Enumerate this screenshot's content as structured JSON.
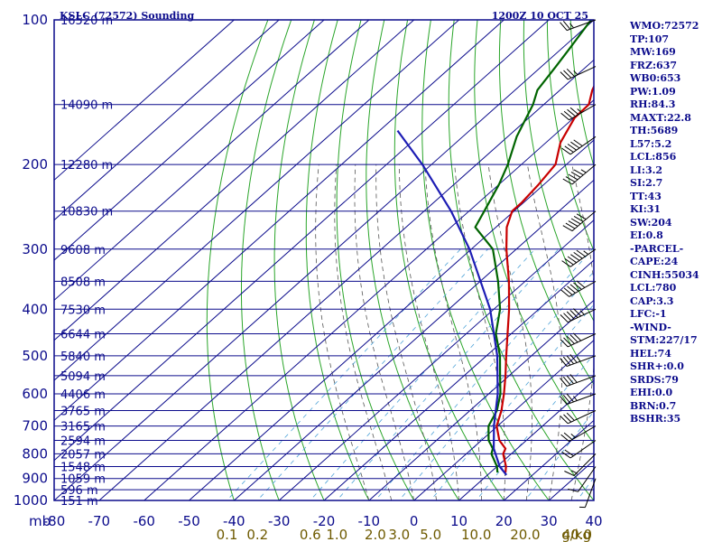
{
  "header": {
    "station": "KSLC (72572) Sounding",
    "time": "1200Z 10 OCT 25"
  },
  "colors": {
    "axis": "#0c0c8c",
    "dry_adiabat": "#2aa52a",
    "moist_adiabat": "#555555",
    "mixing_ratio": "#4fa3d8",
    "temperature": "#c80000",
    "dewpoint": "#006400",
    "parcel": "#1c1cb4",
    "wind": "#000000",
    "mixing_label": "#6e5a00"
  },
  "chart_data": {
    "type": "line",
    "title": "KSLC (72572) Sounding",
    "subtitle": "1200Z 10 OCT 25",
    "xlabel": "",
    "ylabel": "mb",
    "x_units": "degrees C (skewed)",
    "y_units": "hPa (log scale)",
    "xlim": [
      -80,
      40
    ],
    "ylim": [
      1000,
      100
    ],
    "pressure_ticks": [
      100,
      200,
      300,
      400,
      500,
      600,
      700,
      800,
      900,
      1000
    ],
    "temperature_ticks": [
      -80,
      -70,
      -60,
      -50,
      -40,
      -30,
      -20,
      -10,
      0,
      10,
      20,
      30,
      40
    ],
    "temperature_tick_labels": [
      "-80",
      "-70",
      "-60",
      "-50",
      "-40",
      "-30",
      "-20",
      "-10",
      "0",
      "10",
      "20",
      "30",
      "40"
    ],
    "height_labels": [
      {
        "p": 100,
        "label": "16520 m"
      },
      {
        "p": 150,
        "label": "14090 m"
      },
      {
        "p": 200,
        "label": "12280 m"
      },
      {
        "p": 250,
        "label": "10830 m"
      },
      {
        "p": 300,
        "label": "9608 m"
      },
      {
        "p": 350,
        "label": "8508 m"
      },
      {
        "p": 400,
        "label": "7530 m"
      },
      {
        "p": 450,
        "label": "6644 m"
      },
      {
        "p": 500,
        "label": "5840 m"
      },
      {
        "p": 550,
        "label": "5094 m"
      },
      {
        "p": 600,
        "label": "4406 m"
      },
      {
        "p": 650,
        "label": "3765 m"
      },
      {
        "p": 700,
        "label": "3165 m"
      },
      {
        "p": 750,
        "label": "2594 m"
      },
      {
        "p": 800,
        "label": "2057 m"
      },
      {
        "p": 850,
        "label": "1548 m"
      },
      {
        "p": 900,
        "label": "1059 m"
      },
      {
        "p": 950,
        "label": "596 m"
      },
      {
        "p": 1000,
        "label": "151 m"
      }
    ],
    "mixing_ratio_lines": [
      0.1,
      0.2,
      0.6,
      1.0,
      2.0,
      3.0,
      5.0,
      10.0,
      20.0,
      40.0
    ],
    "mixing_ratio_labels": [
      "0.1",
      "0.2",
      "0.6",
      "1.0",
      "2.0",
      "3.0",
      "5.0",
      "10.0",
      "20.0",
      "40.0"
    ],
    "mixing_ratio_unit": "g/kg",
    "series": [
      {
        "name": "temperature",
        "points": [
          {
            "p": 875,
            "t": 13.4
          },
          {
            "p": 850,
            "t": 12.0
          },
          {
            "p": 800,
            "t": 8.2
          },
          {
            "p": 780,
            "t": 7.4
          },
          {
            "p": 750,
            "t": 4.0
          },
          {
            "p": 700,
            "t": -0.2
          },
          {
            "p": 650,
            "t": -3.0
          },
          {
            "p": 600,
            "t": -6.6
          },
          {
            "p": 550,
            "t": -10.8
          },
          {
            "p": 500,
            "t": -15.6
          },
          {
            "p": 450,
            "t": -20.8
          },
          {
            "p": 400,
            "t": -26.6
          },
          {
            "p": 350,
            "t": -33.6
          },
          {
            "p": 300,
            "t": -42.2
          },
          {
            "p": 270,
            "t": -47.6
          },
          {
            "p": 250,
            "t": -50.4
          },
          {
            "p": 240,
            "t": -50.4
          },
          {
            "p": 220,
            "t": -51.2
          },
          {
            "p": 200,
            "t": -52.4
          },
          {
            "p": 180,
            "t": -56.8
          },
          {
            "p": 160,
            "t": -59.8
          },
          {
            "p": 150,
            "t": -60.0
          },
          {
            "p": 140,
            "t": -62.8
          },
          {
            "p": 130,
            "t": -65.0
          },
          {
            "p": 125,
            "t": -66.4
          },
          {
            "p": 120,
            "t": -67.8
          },
          {
            "p": 115,
            "t": -69.4
          },
          {
            "p": 110,
            "t": -70.4
          },
          {
            "p": 105,
            "t": -73.0
          },
          {
            "p": 100,
            "t": -73.6
          }
        ]
      },
      {
        "name": "dewpoint",
        "points": [
          {
            "p": 875,
            "t": 11.6
          },
          {
            "p": 850,
            "t": 10.0
          },
          {
            "p": 800,
            "t": 5.6
          },
          {
            "p": 780,
            "t": 4.6
          },
          {
            "p": 750,
            "t": 1.6
          },
          {
            "p": 700,
            "t": -2.0
          },
          {
            "p": 650,
            "t": -4.0
          },
          {
            "p": 600,
            "t": -7.4
          },
          {
            "p": 550,
            "t": -12.0
          },
          {
            "p": 500,
            "t": -17.0
          },
          {
            "p": 450,
            "t": -23.4
          },
          {
            "p": 400,
            "t": -28.6
          },
          {
            "p": 350,
            "t": -36.0
          },
          {
            "p": 300,
            "t": -45.2
          },
          {
            "p": 270,
            "t": -54.6
          },
          {
            "p": 250,
            "t": -56.6
          },
          {
            "p": 220,
            "t": -60.0
          },
          {
            "p": 200,
            "t": -63.0
          },
          {
            "p": 175,
            "t": -68.0
          },
          {
            "p": 150,
            "t": -72.4
          },
          {
            "p": 140,
            "t": -75.0
          },
          {
            "p": 125,
            "t": -76.8
          },
          {
            "p": 115,
            "t": -78.2
          },
          {
            "p": 100,
            "t": -80.6
          }
        ]
      },
      {
        "name": "parcel",
        "points": [
          {
            "p": 885,
            "t": 14.2
          },
          {
            "p": 850,
            "t": 10.6
          },
          {
            "p": 780,
            "t": 4.8
          },
          {
            "p": 700,
            "t": -0.8
          },
          {
            "p": 600,
            "t": -8.0
          },
          {
            "p": 500,
            "t": -17.6
          },
          {
            "p": 400,
            "t": -30.8
          },
          {
            "p": 300,
            "t": -50.4
          },
          {
            "p": 250,
            "t": -64.0
          },
          {
            "p": 200,
            "t": -82.0
          },
          {
            "p": 170,
            "t": -96.0
          }
        ]
      }
    ],
    "wind_barbs": [
      {
        "p": 900,
        "dir": 200,
        "kt": 5
      },
      {
        "p": 850,
        "dir": 215,
        "kt": 10
      },
      {
        "p": 800,
        "dir": 225,
        "kt": 15
      },
      {
        "p": 750,
        "dir": 235,
        "kt": 20
      },
      {
        "p": 700,
        "dir": 240,
        "kt": 25
      },
      {
        "p": 650,
        "dir": 245,
        "kt": 30
      },
      {
        "p": 600,
        "dir": 250,
        "kt": 35
      },
      {
        "p": 550,
        "dir": 250,
        "kt": 40
      },
      {
        "p": 500,
        "dir": 250,
        "kt": 45
      },
      {
        "p": 450,
        "dir": 245,
        "kt": 50
      },
      {
        "p": 400,
        "dir": 245,
        "kt": 55
      },
      {
        "p": 350,
        "dir": 240,
        "kt": 60
      },
      {
        "p": 300,
        "dir": 235,
        "kt": 65
      },
      {
        "p": 250,
        "dir": 230,
        "kt": 60
      },
      {
        "p": 200,
        "dir": 230,
        "kt": 55
      },
      {
        "p": 175,
        "dir": 235,
        "kt": 50
      },
      {
        "p": 150,
        "dir": 240,
        "kt": 45
      },
      {
        "p": 125,
        "dir": 245,
        "kt": 35
      },
      {
        "p": 100,
        "dir": 250,
        "kt": 25
      }
    ]
  },
  "indices": [
    "WMO:72572",
    "TP:107",
    "MW:169",
    "FRZ:637",
    "WB0:653",
    "PW:1.09",
    "RH:84.3",
    "MAXT:22.8",
    "TH:5689",
    "L57:5.2",
    "LCL:856",
    "LI:3.2",
    "SI:2.7",
    "TT:43",
    "KI:31",
    "SW:204",
    "EI:0.8",
    "-PARCEL-",
    "CAPE:24",
    "CINH:55034",
    "LCL:780",
    "CAP:3.3",
    "LFC:-1",
    "-WIND-",
    "STM:227/17",
    "HEL:74",
    "SHR+:0.0",
    "SRDS:79",
    "EHI:0.0",
    "BRN:0.7",
    "BSHR:35"
  ]
}
